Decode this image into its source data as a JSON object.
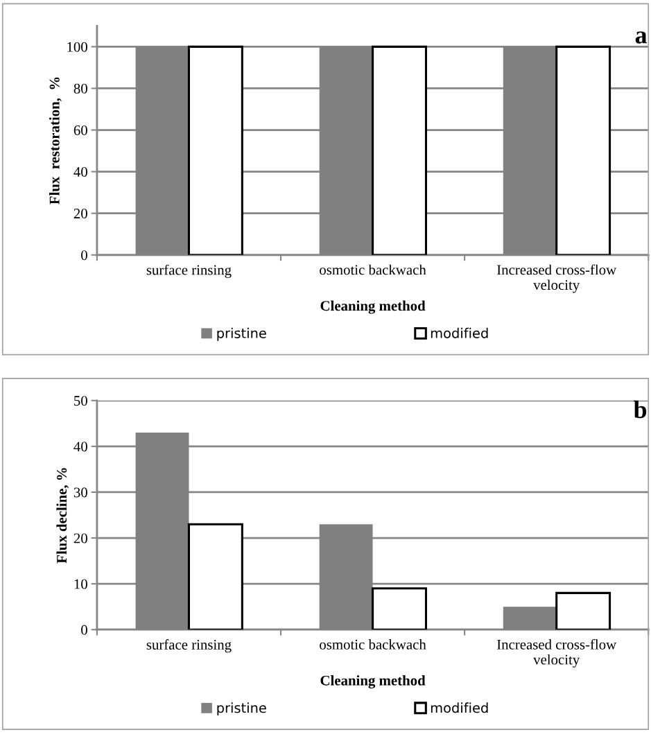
{
  "chart_data": [
    {
      "type": "bar",
      "annotations": [
        "a"
      ],
      "xlabel": "Cleaning method",
      "ylabel": "Flux  restoration,  %",
      "categories": [
        "surface rinsing",
        "osmotic backwach",
        "Increased cross-flow velocity"
      ],
      "series": [
        {
          "name": "pristine",
          "color": "#808080",
          "values": [
            100,
            100,
            100
          ]
        },
        {
          "name": "modified",
          "color": "#ffffff",
          "values": [
            100,
            100,
            100
          ]
        }
      ],
      "ylim": [
        0,
        110
      ],
      "yticks": [
        0,
        20,
        40,
        60,
        80,
        100
      ],
      "grid": "y",
      "legend": "bottom"
    },
    {
      "type": "bar",
      "annotations": [
        "b"
      ],
      "xlabel": "Cleaning method",
      "ylabel": "Flux decline, %",
      "categories": [
        "surface rinsing",
        "osmotic backwach",
        "Increased cross-flow velocity"
      ],
      "series": [
        {
          "name": "pristine",
          "color": "#808080",
          "values": [
            43,
            23,
            5
          ]
        },
        {
          "name": "modified",
          "color": "#ffffff",
          "values": [
            23,
            9,
            8
          ]
        }
      ],
      "ylim": [
        0,
        50
      ],
      "yticks": [
        0,
        10,
        20,
        30,
        40,
        50
      ],
      "grid": "y",
      "legend": "bottom"
    }
  ]
}
